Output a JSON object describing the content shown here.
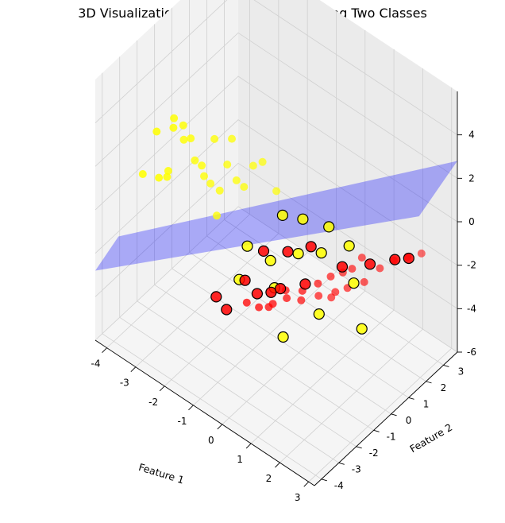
{
  "chart_data": {
    "type": "scatter",
    "title": "3D Visualization of Hyperplane Separating Two Classes",
    "xlabel": "Feature 1",
    "ylabel": "Feature 2",
    "zlabel": "",
    "xlim": [
      -4.4,
      3.2
    ],
    "ylim": [
      -4.4,
      3.8
    ],
    "zlim": [
      -6,
      6
    ],
    "x_ticks": [
      "-4",
      "-3",
      "-2",
      "-1",
      "0",
      "1",
      "2",
      "3"
    ],
    "y_ticks": [
      "-4",
      "-3",
      "-2",
      "-1",
      "0",
      "1",
      "2",
      "3"
    ],
    "z_ticks": [
      "-6",
      "-4",
      "-2",
      "0",
      "2",
      "4"
    ],
    "grid": true,
    "colors": {
      "class_a": "#ffff00",
      "class_b": "#ff0000",
      "support_edge": "#000000",
      "hyperplane": "#0000ff",
      "pane_left": "#f2f2f2",
      "pane_back": "#ebebeb",
      "pane_floor": "#f5f5f5"
    },
    "hyperplane": {
      "z_at_x_min": -2.8,
      "z_at_x_max": 2.8,
      "alpha": 0.3
    },
    "series": [
      {
        "class": "A",
        "color": "#ffff00",
        "points": [
          [
            -3.3,
            -2.7,
            3.3
          ],
          [
            -3.0,
            -2.2,
            3.8
          ],
          [
            -2.9,
            -2.4,
            3.6
          ],
          [
            -2.8,
            -2.0,
            3.5
          ],
          [
            -2.6,
            -1.9,
            3.0
          ],
          [
            -2.9,
            -1.8,
            2.6
          ],
          [
            -3.1,
            -2.9,
            1.5
          ],
          [
            -3.0,
            -2.6,
            1.4
          ],
          [
            -3.2,
            -2.2,
            1.2
          ],
          [
            -3.6,
            -3.0,
            1.3
          ],
          [
            -2.7,
            -1.5,
            1.6
          ],
          [
            -2.2,
            -1.2,
            2.8
          ],
          [
            -2.4,
            -1.6,
            1.7
          ],
          [
            -2.0,
            -0.8,
            1.5
          ],
          [
            -1.9,
            -0.7,
            2.7
          ],
          [
            -2.5,
            -1.3,
            0.9
          ],
          [
            -2.4,
            -1.1,
            0.5
          ],
          [
            -1.6,
            -0.5,
            0.6
          ],
          [
            -1.4,
            -0.3,
            1.6
          ],
          [
            -2.2,
            -0.9,
            0.2
          ],
          [
            -0.9,
            0.2,
            0.5
          ],
          [
            -1.8,
            -0.6,
            0.8
          ],
          [
            -2.0,
            -1.4,
            -0.4
          ],
          [
            -1.2,
            -0.1,
            1.8
          ]
        ]
      },
      {
        "class": "B",
        "color": "#ff0000",
        "points": [
          [
            0.5,
            1.0,
            -2.8
          ],
          [
            0.8,
            1.2,
            -2.5
          ],
          [
            1.0,
            1.4,
            -2.3
          ],
          [
            0.3,
            0.6,
            -3.0
          ],
          [
            0.0,
            0.2,
            -3.3
          ],
          [
            -0.3,
            -0.2,
            -3.6
          ],
          [
            -0.6,
            -0.5,
            -3.9
          ],
          [
            -0.9,
            -0.8,
            -4.1
          ],
          [
            -1.2,
            -1.0,
            -4.0
          ],
          [
            -0.4,
            -0.1,
            -3.4
          ],
          [
            0.9,
            1.3,
            -3.2
          ],
          [
            1.3,
            1.6,
            -2.8
          ],
          [
            1.6,
            2.0,
            -2.2
          ],
          [
            1.9,
            2.3,
            -1.8
          ],
          [
            2.2,
            2.6,
            -1.6
          ],
          [
            2.5,
            2.9,
            -1.4
          ],
          [
            0.2,
            0.8,
            -3.8
          ],
          [
            0.6,
            1.1,
            -3.5
          ],
          [
            -0.1,
            0.3,
            -3.9
          ],
          [
            1.1,
            1.8,
            -2.0
          ],
          [
            -0.8,
            -0.4,
            -4.3
          ],
          [
            0.4,
            1.2,
            -4.0
          ]
        ]
      },
      {
        "class": "support-yellow",
        "color": "#ffff00",
        "points": [
          [
            -0.2,
            -0.6,
            0.6
          ],
          [
            0.2,
            -0.1,
            0.4
          ],
          [
            0.8,
            0.4,
            0.2
          ],
          [
            1.2,
            0.9,
            -0.7
          ],
          [
            -1.0,
            -1.3,
            -1.0
          ],
          [
            -0.5,
            -0.8,
            -1.6
          ],
          [
            0.1,
            -0.2,
            -1.2
          ],
          [
            0.6,
            0.3,
            -1.1
          ],
          [
            1.3,
            1.0,
            -2.4
          ],
          [
            0.7,
            0.0,
            -3.6
          ],
          [
            1.7,
            0.8,
            -4.0
          ],
          [
            0.0,
            -0.9,
            -4.6
          ],
          [
            -1.1,
            -1.6,
            -2.4
          ],
          [
            -0.3,
            -0.9,
            -2.6
          ]
        ]
      },
      {
        "class": "support-red",
        "color": "#ff0000",
        "points": [
          [
            -1.9,
            -1.6,
            -3.9
          ],
          [
            -1.6,
            -1.5,
            -4.3
          ],
          [
            -0.9,
            -0.9,
            -3.4
          ],
          [
            -0.6,
            -0.6,
            -3.3
          ],
          [
            -0.4,
            -0.4,
            -3.1
          ],
          [
            0.1,
            0.2,
            -2.9
          ],
          [
            -1.2,
            -1.1,
            -2.9
          ],
          [
            0.9,
            1.0,
            -2.0
          ],
          [
            1.5,
            1.6,
            -1.8
          ],
          [
            2.0,
            2.2,
            -1.6
          ],
          [
            2.3,
            2.5,
            -1.5
          ],
          [
            -0.8,
            -0.7,
            -1.5
          ],
          [
            0.3,
            0.2,
            -1.0
          ],
          [
            -0.2,
            -0.3,
            -1.3
          ]
        ]
      }
    ]
  }
}
